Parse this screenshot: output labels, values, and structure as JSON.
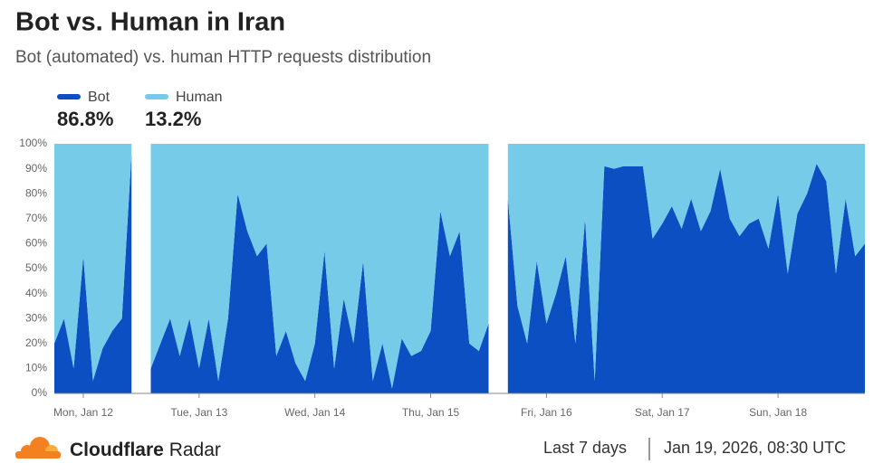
{
  "chart_data": {
    "type": "stacked-area",
    "title": "Bot vs. Human in Iran",
    "subtitle": "Bot (automated) vs. human HTTP requests distribution",
    "categories": [
      null,
      null,
      null,
      "Mon, Jan 12",
      null,
      null,
      null,
      null,
      null,
      null,
      null,
      null,
      null,
      null,
      null,
      "Tue, Jan 13",
      null,
      null,
      null,
      null,
      null,
      null,
      null,
      null,
      null,
      null,
      null,
      "Wed, Jan 14",
      null,
      null,
      null,
      null,
      null,
      null,
      null,
      null,
      null,
      null,
      null,
      "Thu, Jan 15",
      null,
      null,
      null,
      null,
      null,
      null,
      null,
      null,
      null,
      null,
      null,
      "Fri, Jan 16",
      null,
      null,
      null,
      null,
      null,
      null,
      null,
      null,
      null,
      null,
      null,
      "Sat, Jan 17",
      null,
      null,
      null,
      null,
      null,
      null,
      null,
      null,
      null,
      null,
      null,
      "Sun, Jan 18",
      null,
      null,
      null,
      null,
      null,
      null,
      null,
      null,
      null
    ],
    "series": [
      {
        "name": "Bot",
        "color": "#0b4fc2",
        "share": 86.8,
        "share_label": "86.8%",
        "values": [
          20,
          30,
          10,
          55,
          5,
          18,
          25,
          30,
          96,
          null,
          10,
          20,
          30,
          15,
          30,
          10,
          30,
          5,
          30,
          80,
          65,
          55,
          60,
          15,
          25,
          12,
          5,
          20,
          57,
          10,
          38,
          20,
          53,
          5,
          20,
          2,
          22,
          15,
          17,
          25,
          73,
          55,
          65,
          20,
          17,
          28,
          null,
          78,
          35,
          20,
          53,
          28,
          40,
          55,
          20,
          70,
          5,
          91,
          90,
          91,
          91,
          91,
          62,
          68,
          75,
          66,
          78,
          65,
          73,
          90,
          70,
          63,
          68,
          70,
          58,
          80,
          48,
          72,
          80,
          92,
          85,
          48,
          78,
          55,
          60
        ]
      },
      {
        "name": "Human",
        "color": "#76cbe8",
        "share": 13.2,
        "share_label": "13.2%",
        "values": [
          80,
          70,
          90,
          45,
          95,
          82,
          75,
          70,
          4,
          null,
          90,
          80,
          70,
          85,
          70,
          90,
          70,
          95,
          70,
          20,
          35,
          45,
          40,
          85,
          75,
          88,
          95,
          80,
          43,
          90,
          62,
          80,
          47,
          95,
          80,
          98,
          78,
          85,
          83,
          75,
          27,
          45,
          35,
          80,
          83,
          72,
          null,
          22,
          65,
          80,
          47,
          72,
          60,
          45,
          80,
          30,
          95,
          9,
          10,
          9,
          9,
          9,
          38,
          32,
          25,
          34,
          22,
          35,
          27,
          10,
          30,
          37,
          32,
          30,
          42,
          20,
          52,
          28,
          20,
          8,
          15,
          52,
          22,
          45,
          40
        ]
      }
    ],
    "ylim": [
      0,
      100
    ],
    "yticks": [
      {
        "value": 0,
        "label": "0%"
      },
      {
        "value": 10,
        "label": "10%"
      },
      {
        "value": 20,
        "label": "20%"
      },
      {
        "value": 30,
        "label": "30%"
      },
      {
        "value": 40,
        "label": "40%"
      },
      {
        "value": 50,
        "label": "50%"
      },
      {
        "value": 60,
        "label": "60%"
      },
      {
        "value": 70,
        "label": "70%"
      },
      {
        "value": 80,
        "label": "80%"
      },
      {
        "value": 90,
        "label": "90%"
      },
      {
        "value": 100,
        "label": "100%"
      }
    ],
    "grid": false
  },
  "footer": {
    "brand": "Cloudflare",
    "product": "Radar",
    "range": "Last 7 days",
    "timestamp": "Jan 19, 2026, 08:30 UTC"
  }
}
